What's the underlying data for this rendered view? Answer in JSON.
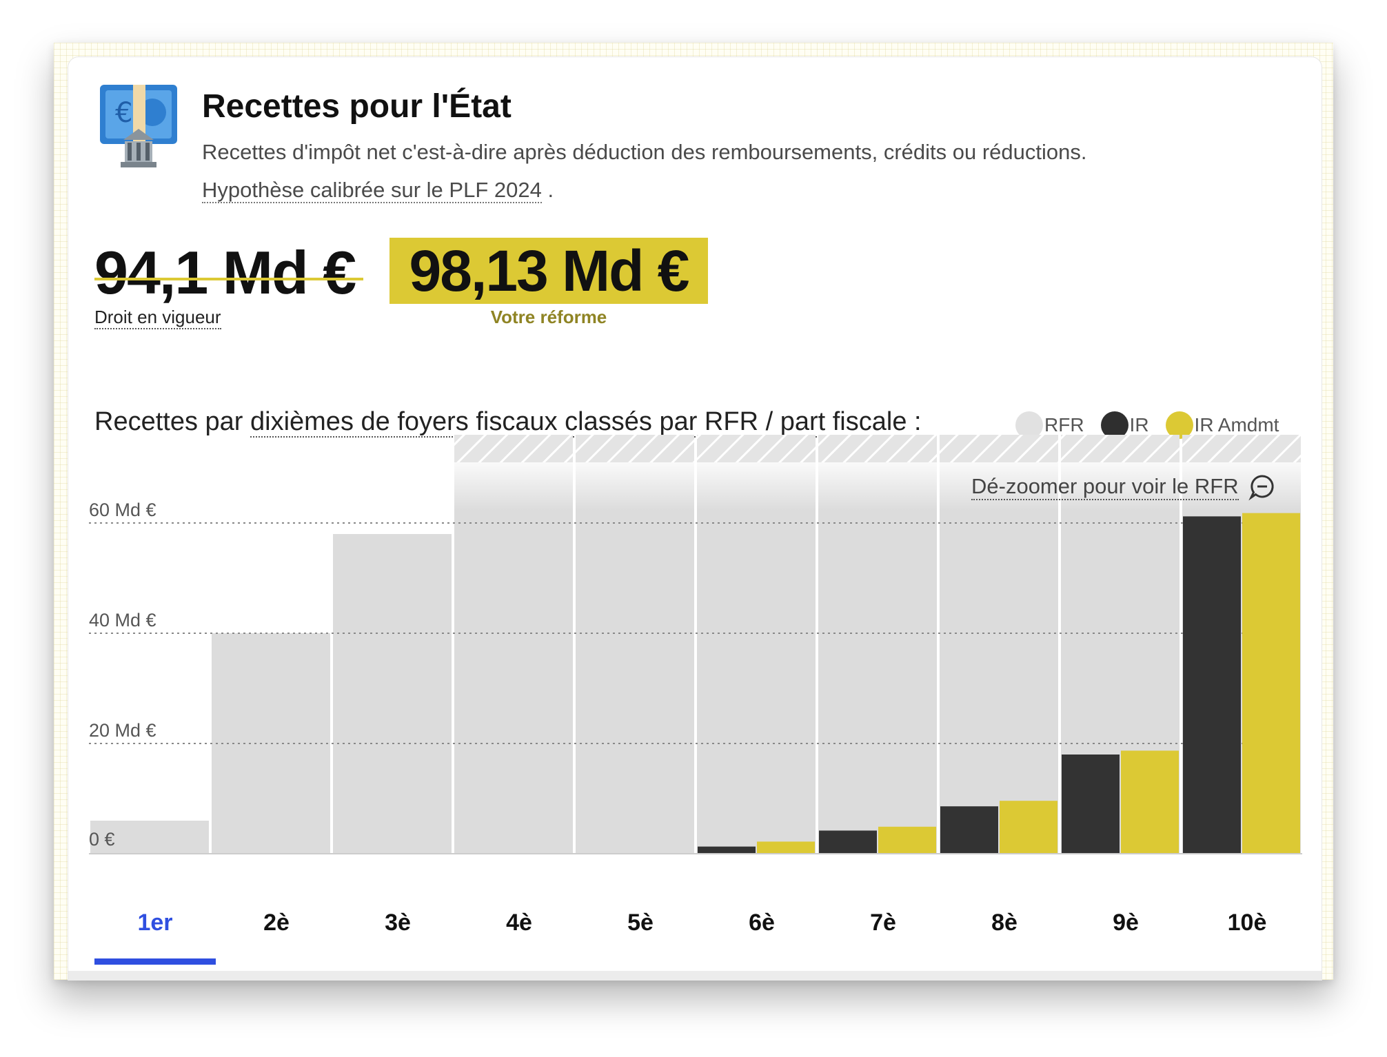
{
  "header": {
    "title": "Recettes pour l'État",
    "description": "Recettes d'impôt net c'est-à-dire après déduction des remboursements, crédits ou réductions.",
    "hypothesis_link": "Hypothèse calibrée sur le PLF 2024",
    "hypothesis_suffix": " ."
  },
  "totals": {
    "current_value": "94,1 Md €",
    "current_label": "Droit en vigueur",
    "reform_value": "98,13 Md €",
    "reform_label": "Votre réforme"
  },
  "section": {
    "title_prefix": "Recettes par ",
    "title_link": "dixièmes de foyers fiscaux classés par RFR / part fiscale :",
    "dezoom_label": "Dé-zoomer pour voir le RFR"
  },
  "legend": [
    {
      "label": "RFR",
      "color": "#e1e1e1"
    },
    {
      "label": "IR",
      "color": "#2f2f2f"
    },
    {
      "label": "IR Amdmt",
      "color": "#dcc934"
    }
  ],
  "tabs": [
    "1er",
    "2è",
    "3è",
    "4è",
    "5è",
    "6è",
    "7è",
    "8è",
    "9è",
    "10è"
  ],
  "active_tab": 0,
  "chart_data": {
    "type": "bar",
    "categories": [
      "1er",
      "2è",
      "3è",
      "4è",
      "5è",
      "6è",
      "7è",
      "8è",
      "9è",
      "10è"
    ],
    "ylim": [
      0,
      76
    ],
    "y_ticks": [
      0,
      20,
      40,
      60
    ],
    "y_tick_labels": [
      "0 €",
      "20 Md €",
      "40 Md €",
      "60 Md €"
    ],
    "clipped_above": 75,
    "grid": "dotted-horizontal",
    "legend_position": "top-right",
    "series": [
      {
        "name": "RFR",
        "color": "#dcdcdc",
        "values": [
          6,
          40,
          58,
          76,
          76,
          76,
          76,
          76,
          76,
          76
        ]
      },
      {
        "name": "IR",
        "color": "#333333",
        "values": [
          0,
          0,
          0,
          0,
          0,
          1.3,
          4.2,
          8.6,
          18,
          61.2
        ]
      },
      {
        "name": "IR Amdmt",
        "color": "#dcc934",
        "values": [
          0,
          0,
          0,
          0,
          0,
          2.2,
          4.9,
          9.6,
          18.7,
          61.8
        ]
      }
    ]
  }
}
